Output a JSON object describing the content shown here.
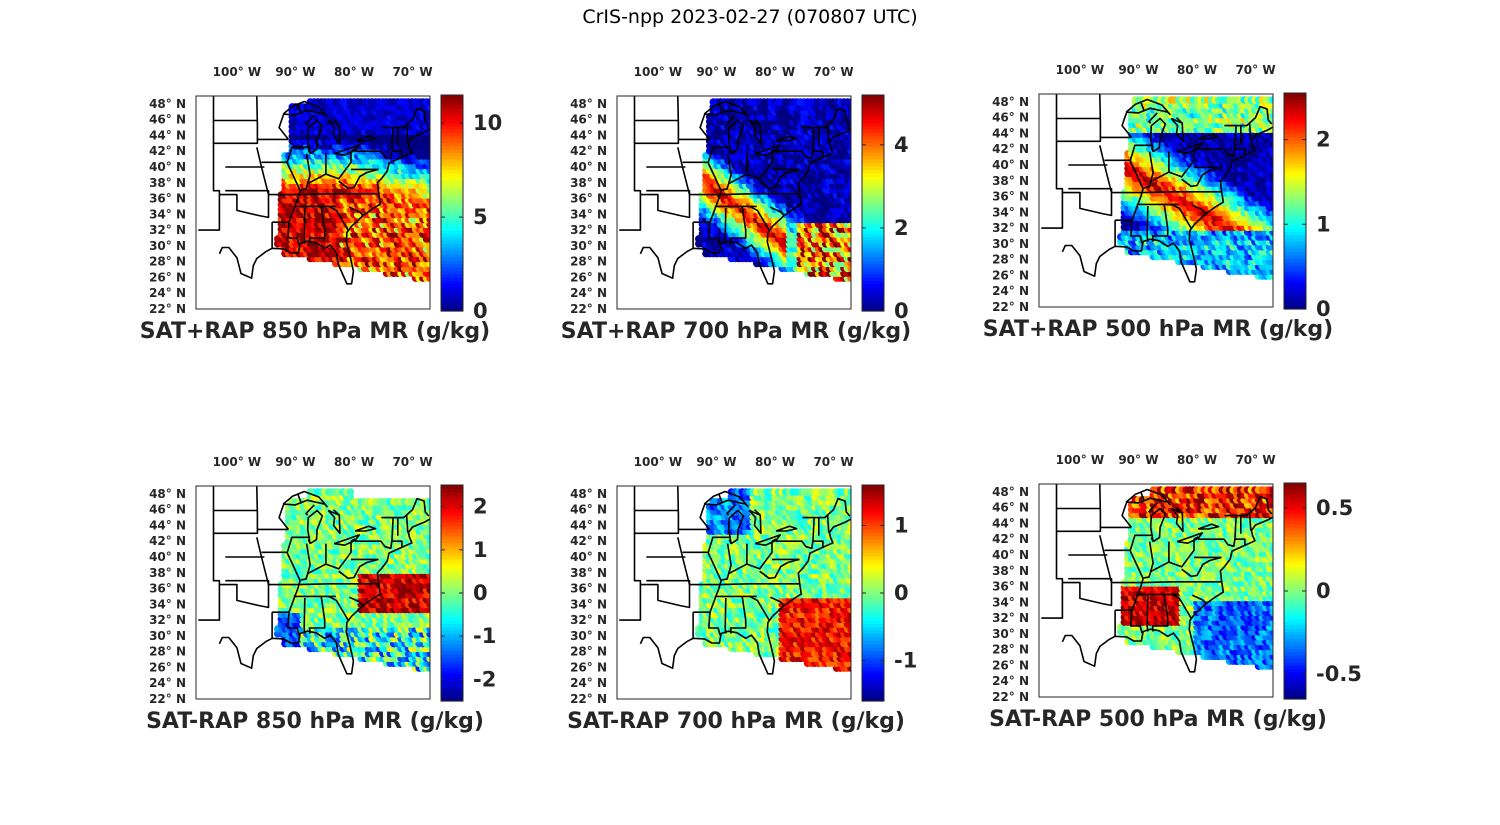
{
  "title": "CrIS-npp 2023-02-27 (070807 UTC)",
  "lon_labels": [
    "100° W",
    "90° W",
    "80° W",
    "70° W"
  ],
  "lat_labels": [
    "48° N",
    "46° N",
    "44° N",
    "42° N",
    "40° N",
    "38° N",
    "36° N",
    "34° N",
    "32° N",
    "30° N",
    "28° N",
    "26° N",
    "24° N",
    "22° N"
  ],
  "colormap": "jet",
  "panels": [
    {
      "title": "SAT+RAP 850 hPa MR (g/kg)",
      "cmin": 0,
      "cmax": 11.5,
      "ticks": [
        {
          "v": 0,
          "t": "0"
        },
        {
          "v": 5,
          "t": "5"
        },
        {
          "v": 10,
          "t": "10"
        }
      ],
      "kind": "total850"
    },
    {
      "title": "SAT+RAP 700 hPa MR (g/kg)",
      "cmin": 0,
      "cmax": 5.2,
      "ticks": [
        {
          "v": 0,
          "t": "0"
        },
        {
          "v": 2,
          "t": "2"
        },
        {
          "v": 4,
          "t": "4"
        }
      ],
      "kind": "total700"
    },
    {
      "title": "SAT+RAP 500 hPa MR (g/kg)",
      "cmin": 0,
      "cmax": 2.55,
      "ticks": [
        {
          "v": 0,
          "t": "0"
        },
        {
          "v": 1,
          "t": "1"
        },
        {
          "v": 2,
          "t": "2"
        }
      ],
      "kind": "total500"
    },
    {
      "title": "SAT-RAP 850 hPa MR (g/kg)",
      "cmin": -2.5,
      "cmax": 2.5,
      "ticks": [
        {
          "v": -2,
          "t": "-2"
        },
        {
          "v": -1,
          "t": "-1"
        },
        {
          "v": 0,
          "t": "0"
        },
        {
          "v": 1,
          "t": "1"
        },
        {
          "v": 2,
          "t": "2"
        }
      ],
      "kind": "diff850"
    },
    {
      "title": "SAT-RAP 700 hPa MR (g/kg)",
      "cmin": -1.6,
      "cmax": 1.6,
      "ticks": [
        {
          "v": -1,
          "t": "-1"
        },
        {
          "v": 0,
          "t": "0"
        },
        {
          "v": 1,
          "t": "1"
        }
      ],
      "kind": "diff700"
    },
    {
      "title": "SAT-RAP 500 hPa MR (g/kg)",
      "cmin": -0.65,
      "cmax": 0.65,
      "ticks": [
        {
          "v": -0.5,
          "t": "-0.5"
        },
        {
          "v": 0,
          "t": "0"
        },
        {
          "v": 0.5,
          "t": "0.5"
        }
      ],
      "kind": "diff500"
    }
  ]
}
